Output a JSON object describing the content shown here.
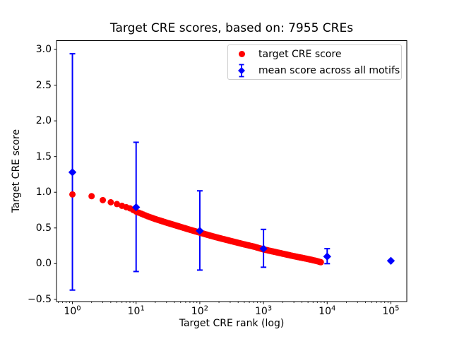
{
  "window": {
    "kind": "matplotlib-figure",
    "background": "#ffffff"
  },
  "chart_data": {
    "type": "scatter",
    "title": "Target CRE scores, based on: 7955 CREs",
    "xlabel": "Target CRE rank (log)",
    "ylabel": "Target CRE score",
    "x_scale": "log10",
    "xlim_log10": [
      -0.25,
      5.25
    ],
    "ylim": [
      -0.531,
      3.124
    ],
    "grid": false,
    "legend_position": "upper right",
    "x_major_ticks": [
      1,
      10,
      100,
      1000,
      10000,
      100000
    ],
    "x_tick_base": "10",
    "x_tick_exponents": [
      "0",
      "1",
      "2",
      "3",
      "4",
      "5"
    ],
    "y_ticks": [
      3.0,
      2.5,
      2.0,
      1.5,
      1.0,
      0.5,
      0.0,
      -0.5
    ],
    "y_tick_labels": [
      "3.0",
      "2.5",
      "2.0",
      "1.5",
      "1.0",
      "0.5",
      "0.0",
      "−0.5"
    ],
    "series": [
      {
        "name": "target CRE score",
        "marker": "circle",
        "color": "#ff0000",
        "n_points_depicted": 7955,
        "rank_range": [
          1,
          7955
        ],
        "curve_control_points": [
          [
            1,
            0.97
          ],
          [
            2,
            0.945
          ],
          [
            3,
            0.89
          ],
          [
            4,
            0.86
          ],
          [
            5,
            0.835
          ],
          [
            6,
            0.81
          ],
          [
            8,
            0.775
          ],
          [
            10,
            0.73
          ],
          [
            15,
            0.665
          ],
          [
            20,
            0.625
          ],
          [
            30,
            0.575
          ],
          [
            50,
            0.515
          ],
          [
            70,
            0.475
          ],
          [
            100,
            0.435
          ],
          [
            150,
            0.39
          ],
          [
            200,
            0.36
          ],
          [
            300,
            0.32
          ],
          [
            500,
            0.27
          ],
          [
            700,
            0.24
          ],
          [
            1000,
            0.2
          ],
          [
            1500,
            0.165
          ],
          [
            2000,
            0.14
          ],
          [
            3000,
            0.105
          ],
          [
            5000,
            0.065
          ],
          [
            7000,
            0.035
          ],
          [
            7955,
            0.02
          ]
        ]
      },
      {
        "name": "mean score across all motifs",
        "marker": "diamond",
        "color": "#0000ff",
        "points": [
          {
            "x": 1,
            "mean": 1.28,
            "err_lo": -0.37,
            "err_hi": 2.94
          },
          {
            "x": 10,
            "mean": 0.79,
            "err_lo": -0.11,
            "err_hi": 1.7
          },
          {
            "x": 100,
            "mean": 0.46,
            "err_lo": -0.09,
            "err_hi": 1.02
          },
          {
            "x": 1000,
            "mean": 0.21,
            "err_lo": -0.05,
            "err_hi": 0.48
          },
          {
            "x": 10000,
            "mean": 0.1,
            "err_lo": 0.0,
            "err_hi": 0.21
          },
          {
            "x": 100000,
            "mean": 0.04,
            "err_lo": 0.04,
            "err_hi": 0.04
          }
        ]
      }
    ]
  },
  "legend": {
    "items": [
      {
        "label": "target CRE score",
        "marker": "red-circle",
        "color": "#ff0000"
      },
      {
        "label": "mean score across all motifs",
        "marker": "blue-diamond-errorbar",
        "color": "#0000ff"
      }
    ]
  }
}
